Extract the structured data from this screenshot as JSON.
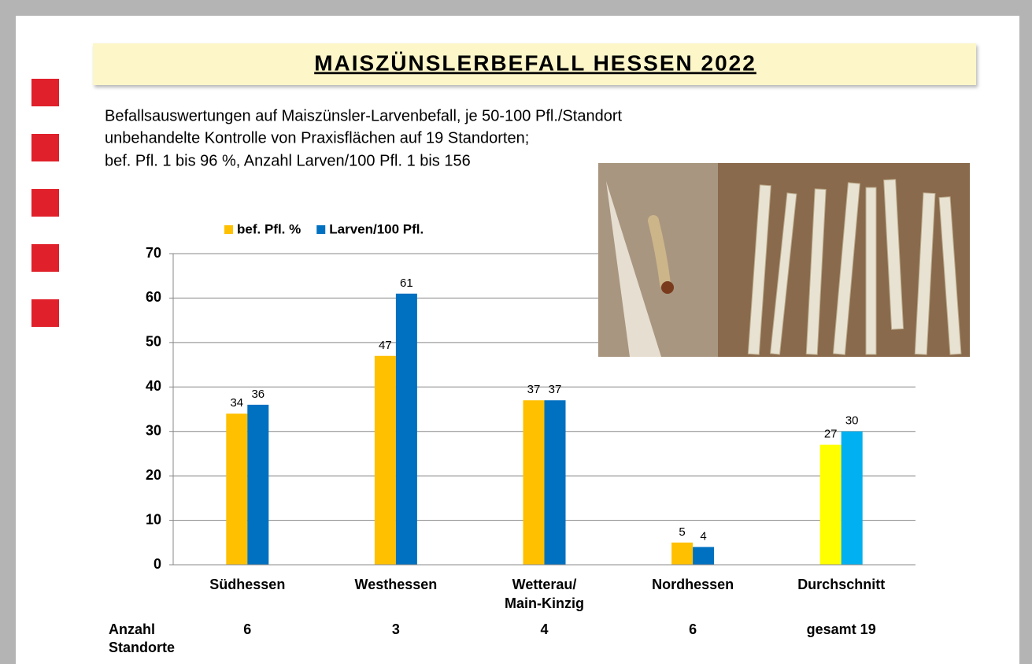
{
  "chart_data": {
    "type": "bar",
    "title": "MAISZÜNSLERBEFALL HESSEN 2022",
    "subtitle": [
      "Befallsauswertungen auf Maiszünsler-Larvenbefall, je 50-100 Pfl./Standort",
      "unbehandelte Kontrolle von Praxisflächen auf 19 Standorten;",
      "bef. Pfl. 1 bis 96 %,  Anzahl Larven/100 Pfl. 1 bis 156"
    ],
    "categories": [
      "Südhessen",
      "Westhessen",
      "Wetterau/\nMain-Kinzig",
      "Nordhessen",
      "Durchschnitt"
    ],
    "series": [
      {
        "name": "bef. Pfl. %",
        "color": "#ffc000",
        "colors": [
          "#ffc000",
          "#ffc000",
          "#ffc000",
          "#ffc000",
          "#ffff00"
        ],
        "values": [
          34,
          47,
          37,
          5,
          27
        ]
      },
      {
        "name": "Larven/100 Pfl.",
        "color": "#0070c0",
        "colors": [
          "#0070c0",
          "#0070c0",
          "#0070c0",
          "#0070c0",
          "#00b0f0"
        ],
        "values": [
          36,
          61,
          37,
          4,
          30
        ]
      }
    ],
    "ylim": [
      0,
      70
    ],
    "yticks": [
      0,
      10,
      20,
      30,
      40,
      50,
      60,
      70
    ],
    "grid": true,
    "legend": "top-left",
    "sites_label": "Anzahl\nStandorte",
    "sites": [
      "6",
      "3",
      "4",
      "6",
      "gesamt 19"
    ]
  }
}
